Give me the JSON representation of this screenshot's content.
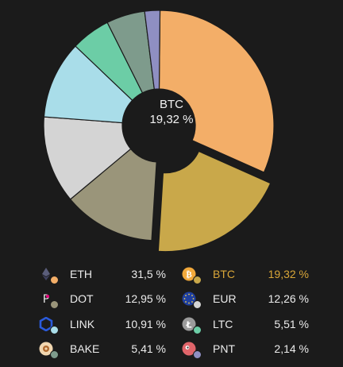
{
  "center": {
    "symbol": "BTC",
    "percent": "19,32 %"
  },
  "chart_data": {
    "type": "pie",
    "series": [
      {
        "name": "ETH",
        "values": [
          31.5
        ],
        "color": "#f3ae68"
      },
      {
        "name": "BTC",
        "values": [
          19.32
        ],
        "color": "#c9a84a"
      },
      {
        "name": "DOT",
        "values": [
          12.95
        ],
        "color": "#9a957a"
      },
      {
        "name": "EUR",
        "values": [
          12.26
        ],
        "color": "#d4d4d4"
      },
      {
        "name": "LINK",
        "values": [
          10.91
        ],
        "color": "#a9dde9"
      },
      {
        "name": "LTC",
        "values": [
          5.51
        ],
        "color": "#6ccda6"
      },
      {
        "name": "BAKE",
        "values": [
          5.41
        ],
        "color": "#7e9b8c"
      },
      {
        "name": "PNT",
        "values": [
          2.14
        ],
        "color": "#8f8fc2"
      }
    ],
    "selected": "BTC"
  },
  "legend": [
    {
      "symbol": "ETH",
      "value": "31,5 %",
      "icon": "eth-icon",
      "color": "#f3ae68"
    },
    {
      "symbol": "BTC",
      "value": "19,32 %",
      "icon": "btc-icon",
      "color": "#c9a84a",
      "active": true
    },
    {
      "symbol": "DOT",
      "value": "12,95 %",
      "icon": "dot-icon",
      "color": "#9a957a"
    },
    {
      "symbol": "EUR",
      "value": "12,26 %",
      "icon": "eur-icon",
      "color": "#d4d4d4"
    },
    {
      "symbol": "LINK",
      "value": "10,91 %",
      "icon": "link-icon",
      "color": "#a9dde9"
    },
    {
      "symbol": "LTC",
      "value": "5,51 %",
      "icon": "ltc-icon",
      "color": "#6ccda6"
    },
    {
      "symbol": "BAKE",
      "value": "5,41 %",
      "icon": "bake-icon",
      "color": "#7e9b8c"
    },
    {
      "symbol": "PNT",
      "value": "2,14 %",
      "icon": "pnt-icon",
      "color": "#8f8fc2"
    }
  ]
}
